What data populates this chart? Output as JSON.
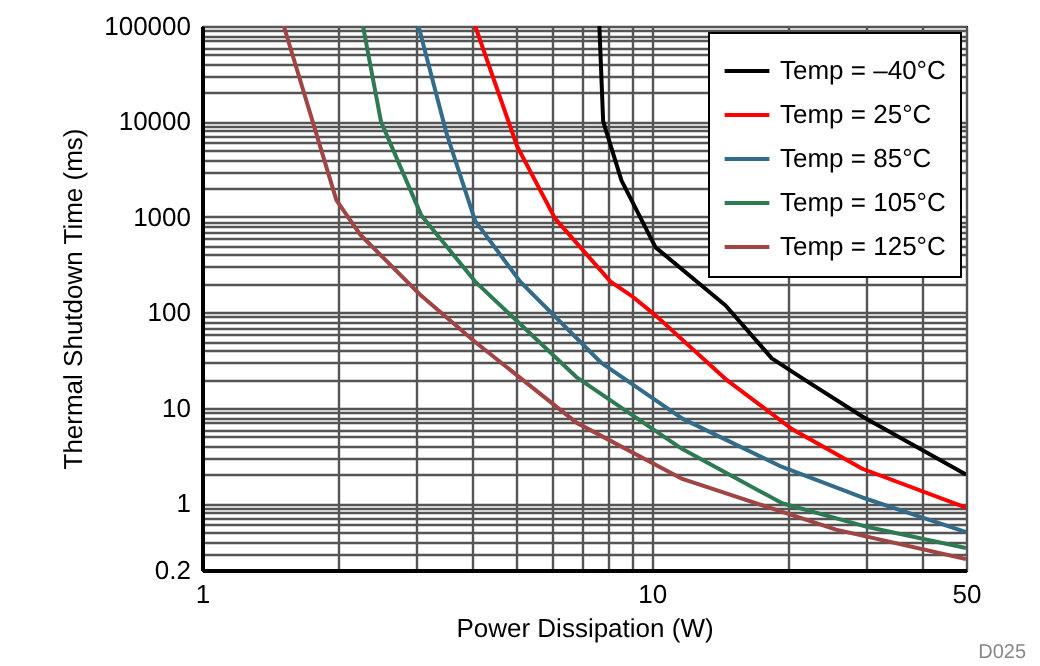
{
  "chart_data": {
    "type": "line",
    "xlabel": "Power Dissipation (W)",
    "ylabel": "Thermal Shutdown Time (ms)",
    "log": "xy",
    "grid": true,
    "legend": "top right",
    "marker": "none",
    "line_style": "solid",
    "xlim": [
      1,
      50
    ],
    "xticks": [
      1,
      10,
      50
    ],
    "ylim": [
      0.2,
      100000
    ],
    "yticks": [
      0.2,
      1,
      10,
      100,
      1000,
      10000,
      100000
    ],
    "annotations": [
      "D025"
    ],
    "series": [
      {
        "name": "Temp = –40°C",
        "color": "#000000",
        "x": [
          7.65,
          7.8,
          8.57,
          10.2,
          14.6,
          18.5,
          21.6,
          29.4,
          50
        ],
        "values": [
          100000,
          10000,
          2400,
          480,
          118,
          33,
          20.5,
          8.1,
          2.0
        ]
      },
      {
        "name": "Temp = 25°C",
        "color": "#ff0000",
        "x": [
          4.05,
          5.02,
          6.1,
          8.1,
          9.0,
          10.2,
          14.6,
          20.5,
          29.4,
          50
        ],
        "values": [
          100000,
          5500,
          960,
          210,
          150,
          93,
          20,
          6,
          2.3,
          0.9
        ]
      },
      {
        "name": "Temp = 85°C",
        "color": "#336b8a",
        "x": [
          3.03,
          3.5,
          4.05,
          5.1,
          7.7,
          11.7,
          19.5,
          29.4,
          50
        ],
        "values": [
          100000,
          7400,
          910,
          210,
          30,
          7.7,
          2.4,
          1.15,
          0.5
        ]
      },
      {
        "name": "Temp = 105°C",
        "color": "#2e7a52",
        "x": [
          2.28,
          2.5,
          3.07,
          4.05,
          6.8,
          11.7,
          19.5,
          30.4,
          50
        ],
        "values": [
          100000,
          10000,
          1050,
          210,
          21,
          3.7,
          1.0,
          0.56,
          0.34
        ]
      },
      {
        "name": "Temp = 125°C",
        "color": "#a04444",
        "x": [
          1.52,
          1.99,
          2.25,
          3.07,
          4.05,
          6.8,
          11.7,
          25.7,
          50
        ],
        "values": [
          100000,
          1500,
          650,
          150,
          49,
          7,
          1.8,
          0.53,
          0.26
        ]
      }
    ]
  }
}
